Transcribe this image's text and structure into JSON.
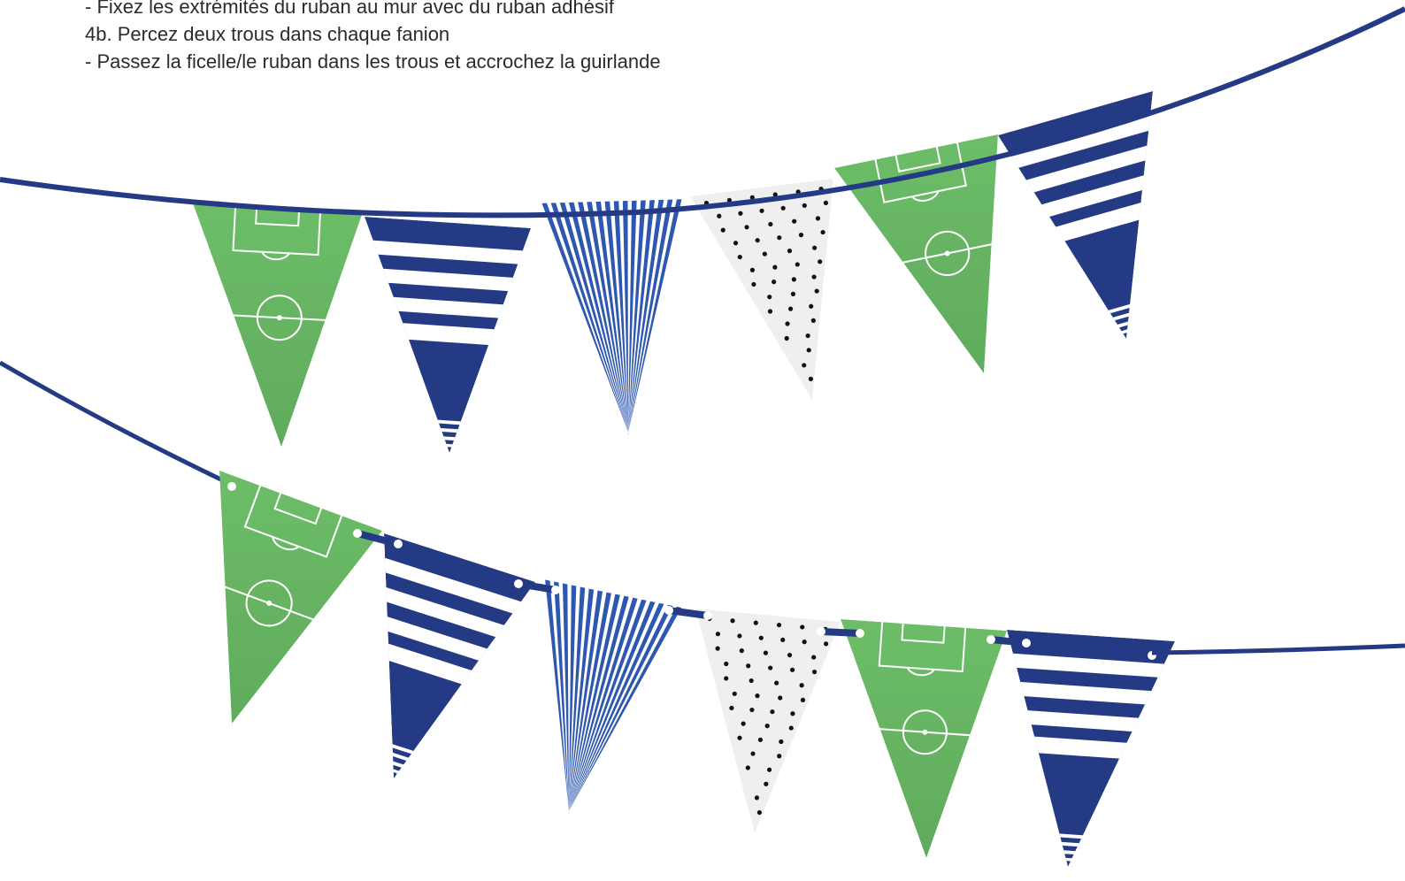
{
  "instructions": {
    "lines": [
      "- Fixez les extrémités du ruban au mur avec du ruban adhésif",
      "4b. Percez deux trous dans chaque fanion",
      "- Passez la ficelle/le ruban dans les trous et accrochez la guirlande"
    ]
  },
  "colors": {
    "ribbon": "#253a84",
    "pitch_green": "#69b966",
    "navy": "#253a84",
    "royal_blue": "#2e57b0",
    "dot_background": "#efefef",
    "dot": "#111111",
    "white": "#ffffff"
  },
  "garlands": [
    {
      "name": "garland-top",
      "attachment": "ribbon over the top edge",
      "pennants": [
        "football-pitch",
        "navy-white-stripes",
        "vertical-blue-stripes",
        "polka-dots",
        "football-pitch",
        "navy-white-stripes"
      ]
    },
    {
      "name": "garland-bottom",
      "attachment": "ribbon threaded through two holes per pennant",
      "pennants": [
        "football-pitch",
        "navy-white-stripes",
        "vertical-blue-stripes",
        "polka-dots",
        "football-pitch",
        "navy-white-stripes"
      ]
    }
  ]
}
